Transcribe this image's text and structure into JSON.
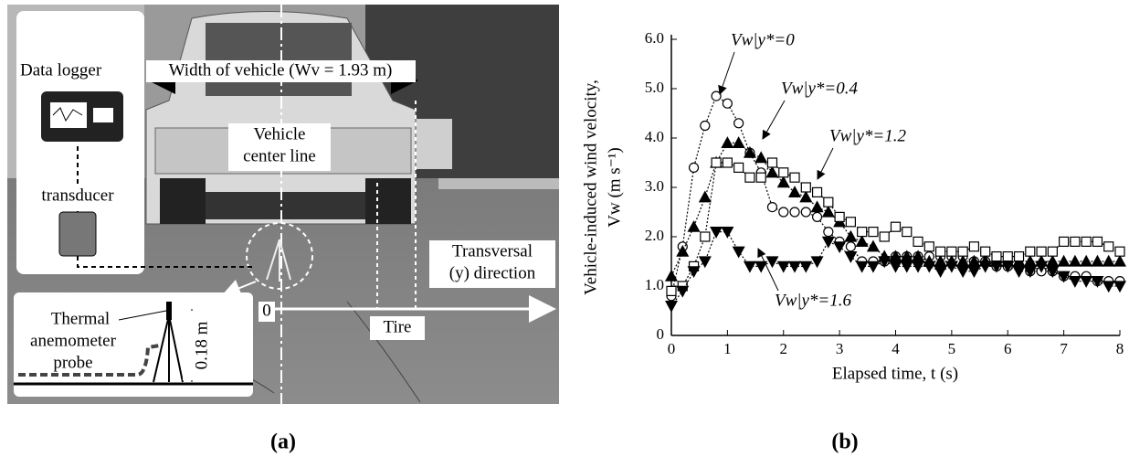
{
  "panel_a": {
    "data_logger": "Data logger",
    "transducer": "transducer",
    "width_label": "Width of vehicle (Wv = 1.93 m)",
    "center_line": [
      "Vehicle",
      "center line"
    ],
    "transversal": [
      "Transversal",
      "(y) direction"
    ],
    "origin": "0",
    "tire": "Tire",
    "probe": [
      "Thermal",
      "anemometer",
      "probe"
    ],
    "height": "0.18 m",
    "caption": "(a)"
  },
  "caption_b": "(b)",
  "chart_data": {
    "type": "scatter",
    "y_label": [
      "Vehicle-induced wind velocity,",
      "Vw (m s⁻¹)"
    ],
    "x_label": "Elapsed time, t (s)",
    "xlim": [
      0,
      8
    ],
    "xticks": [
      0,
      1,
      2,
      3,
      4,
      5,
      6,
      7,
      8
    ],
    "ylim": [
      0,
      6
    ],
    "yticks": [
      0,
      {
        "value": 1,
        "label": "1.0"
      },
      {
        "value": 2,
        "label": "2.0"
      },
      {
        "value": 3,
        "label": "3.0"
      },
      {
        "value": 4,
        "label": "4.0"
      },
      {
        "value": 5,
        "label": "5.0"
      },
      {
        "value": 6,
        "label": "6.0"
      }
    ],
    "x": [
      0,
      0.2,
      0.4,
      0.6,
      0.8,
      1,
      1.2,
      1.4,
      1.6,
      1.8,
      2,
      2.2,
      2.4,
      2.6,
      2.8,
      3,
      3.2,
      3.4,
      3.6,
      3.8,
      4,
      4.2,
      4.4,
      4.6,
      4.8,
      5,
      5.2,
      5.4,
      5.6,
      5.8,
      6,
      6.2,
      6.4,
      6.6,
      6.8,
      7,
      7.2,
      7.4,
      7.6,
      7.8,
      8
    ],
    "series": [
      {
        "name": "Vw|y*=0",
        "color": "#000",
        "marker": "circle",
        "filled": false,
        "values": [
          0.8,
          1.8,
          3.4,
          4.25,
          4.85,
          4.7,
          4.3,
          3.7,
          3.3,
          2.6,
          2.5,
          2.5,
          2.5,
          2.4,
          2.1,
          1.9,
          1.8,
          1.5,
          1.5,
          1.5,
          1.6,
          1.6,
          1.6,
          1.6,
          1.6,
          1.6,
          1.6,
          1.5,
          1.5,
          1.4,
          1.4,
          1.4,
          1.3,
          1.3,
          1.3,
          1.2,
          1.2,
          1.2,
          1.1,
          1.1,
          1.1
        ]
      },
      {
        "name": "Vw|y*=0.4",
        "color": "#000",
        "marker": "triangle-up",
        "filled": true,
        "values": [
          1.2,
          1.7,
          2.2,
          2.8,
          3.5,
          3.9,
          3.9,
          3.7,
          3.6,
          3.3,
          3.1,
          2.9,
          2.8,
          2.6,
          2.5,
          2.3,
          2.0,
          1.9,
          1.8,
          1.6,
          1.6,
          1.6,
          1.6,
          1.5,
          1.5,
          1.5,
          1.5,
          1.5,
          1.5,
          1.5,
          1.5,
          1.5,
          1.5,
          1.5,
          1.5,
          1.5,
          1.5,
          1.5,
          1.5,
          1.5,
          1.5
        ]
      },
      {
        "name": "Vw|y*=1.2",
        "color": "#000",
        "marker": "square",
        "filled": false,
        "values": [
          0.9,
          1.0,
          1.4,
          2.0,
          3.5,
          3.5,
          3.4,
          3.2,
          3.2,
          3.5,
          3.3,
          3.2,
          3.0,
          2.9,
          2.7,
          2.4,
          2.3,
          2.1,
          2.1,
          2.0,
          2.2,
          2.1,
          1.9,
          1.8,
          1.7,
          1.7,
          1.7,
          1.8,
          1.7,
          1.6,
          1.6,
          1.6,
          1.7,
          1.7,
          1.7,
          1.9,
          1.9,
          1.9,
          1.9,
          1.8,
          1.7
        ]
      },
      {
        "name": "Vw|y*=1.6",
        "color": "#000",
        "marker": "triangle-down",
        "filled": true,
        "values": [
          0.6,
          0.9,
          1.3,
          1.5,
          2.1,
          2.1,
          1.7,
          1.4,
          1.4,
          1.5,
          1.4,
          1.4,
          1.4,
          1.5,
          1.9,
          1.8,
          1.6,
          1.4,
          1.4,
          1.5,
          1.4,
          1.4,
          1.4,
          1.4,
          1.3,
          1.4,
          1.3,
          1.3,
          1.4,
          1.4,
          1.4,
          1.3,
          1.3,
          1.4,
          1.3,
          1.2,
          1.1,
          1.1,
          1.1,
          1.0,
          1.0
        ]
      }
    ]
  }
}
